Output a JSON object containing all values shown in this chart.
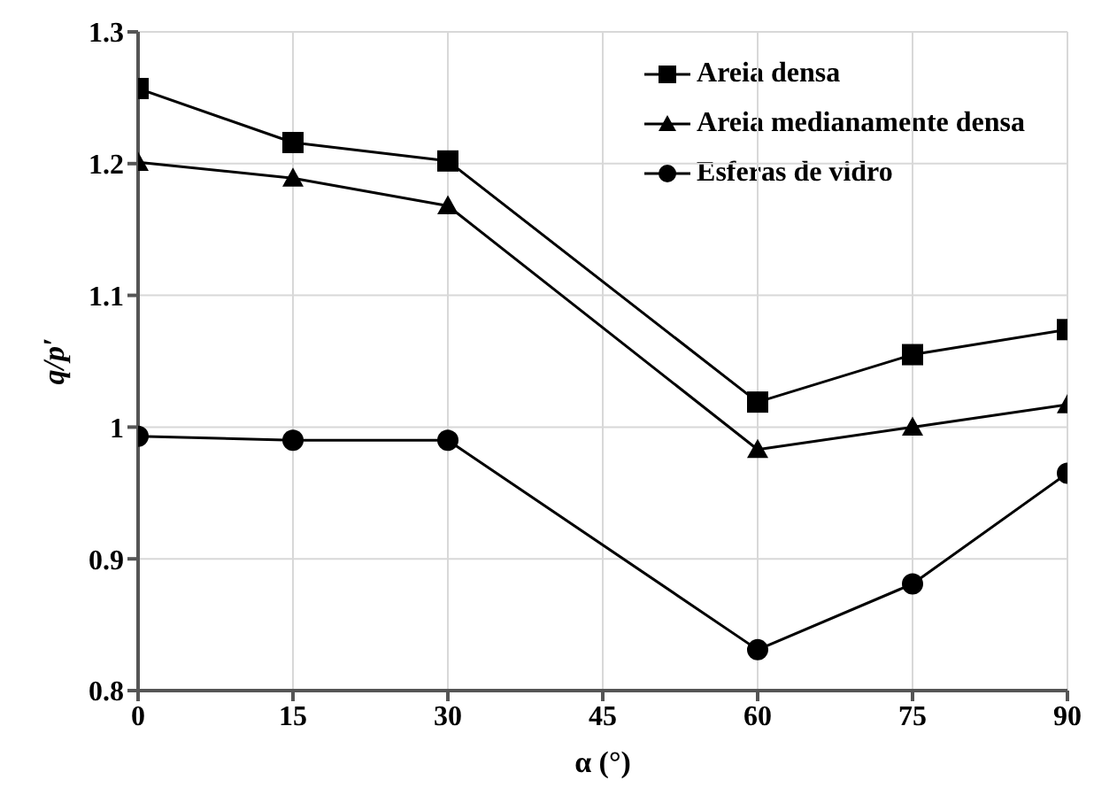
{
  "chart_data": {
    "type": "line",
    "xlabel": "α (°)",
    "ylabel": "q/p′",
    "x": [
      0,
      15,
      30,
      60,
      75,
      90
    ],
    "series": [
      {
        "name": "Areia densa",
        "color": "#000000",
        "marker": "square",
        "values": [
          1.257,
          1.216,
          1.202,
          1.019,
          1.055,
          1.074
        ]
      },
      {
        "name": "Areia medianamente densa",
        "color": "#000000",
        "marker": "triangle",
        "values": [
          1.201,
          1.189,
          1.168,
          0.983,
          1.0,
          1.017
        ]
      },
      {
        "name": "Esferas de vidro",
        "color": "#000000",
        "marker": "circle",
        "values": [
          0.993,
          0.99,
          0.99,
          0.831,
          0.881,
          0.965
        ]
      }
    ],
    "xlim": [
      0,
      90
    ],
    "xticks": [
      0,
      15,
      30,
      45,
      60,
      75,
      90
    ],
    "ylim": [
      0.8,
      1.3
    ],
    "yticks": [
      0.8,
      0.9,
      1,
      1.1,
      1.2,
      1.3
    ],
    "grid": true,
    "legend": "top right",
    "line_style": "solid"
  }
}
